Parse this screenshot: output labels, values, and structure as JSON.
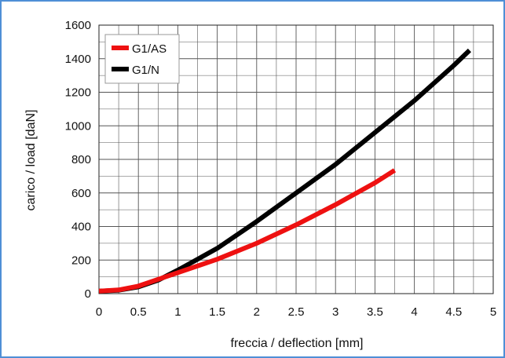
{
  "chart_data": {
    "type": "line",
    "title": "",
    "xlabel": "freccia / deflection [mm]",
    "ylabel": "carico / load [daN]",
    "xlim": [
      0,
      5
    ],
    "ylim": [
      0,
      1600
    ],
    "x_ticks": [
      "0",
      "0.5",
      "1",
      "1.5",
      "2",
      "2.5",
      "3",
      "3.5",
      "4",
      "4.5",
      "5"
    ],
    "y_ticks": [
      "0",
      "200",
      "400",
      "600",
      "800",
      "1000",
      "1200",
      "1400",
      "1600"
    ],
    "grid": true,
    "legend_position": "top-left",
    "series": [
      {
        "name": "G1/AS",
        "color": "#ee1111",
        "x": [
          0,
          0.25,
          0.5,
          0.75,
          1.0,
          1.5,
          2.0,
          2.5,
          3.0,
          3.5,
          3.75
        ],
        "y": [
          15,
          22,
          45,
          85,
          125,
          205,
          300,
          410,
          530,
          660,
          735
        ]
      },
      {
        "name": "G1/N",
        "color": "#000000",
        "x": [
          0,
          0.25,
          0.5,
          0.75,
          1.0,
          1.5,
          2.0,
          2.5,
          3.0,
          3.5,
          4.0,
          4.5,
          4.7
        ],
        "y": [
          15,
          20,
          40,
          80,
          140,
          270,
          430,
          600,
          770,
          960,
          1150,
          1360,
          1450
        ]
      }
    ]
  }
}
